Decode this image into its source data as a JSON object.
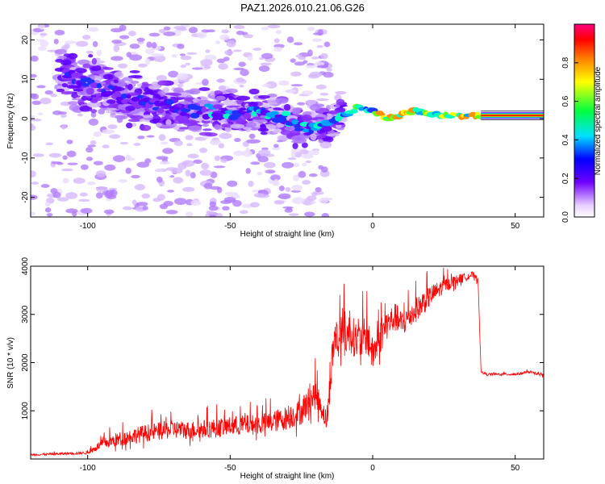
{
  "title": "PAZ1.2026.010.21.06.G26",
  "chart_data": [
    {
      "type": "heatmap",
      "title": "PAZ1.2026.010.21.06.G26",
      "xlabel": "Height of straight line (km)",
      "ylabel": "Frequency (Hz)",
      "xlim": [
        -120,
        60
      ],
      "ylim": [
        -25,
        24
      ],
      "xticks": [
        -100,
        -50,
        0,
        50
      ],
      "yticks": [
        -20,
        -10,
        0,
        10,
        20
      ],
      "colorbar": {
        "label": "Normalized spectral amplitude",
        "range": [
          0.0,
          1.0
        ],
        "ticks": [
          0.0,
          0.2,
          0.4,
          0.6,
          0.8
        ],
        "tick_labels": [
          "0.0",
          "0.2",
          "0.4",
          "0.6",
          "0.8"
        ]
      },
      "ridge_frequency": {
        "x": [
          -120,
          -110,
          -100,
          -90,
          -80,
          -70,
          -60,
          -50,
          -40,
          -30,
          -25,
          -20,
          -15,
          -10,
          -5,
          0,
          5,
          10,
          15,
          20,
          30,
          40,
          50,
          60
        ],
        "y": [
          12,
          11,
          9,
          6,
          4,
          3,
          2,
          1.5,
          1,
          0,
          -2,
          -2,
          -1,
          1,
          3,
          2,
          0,
          1,
          2,
          1,
          0.8,
          0.8,
          0.8,
          0.8
        ]
      }
    },
    {
      "type": "line",
      "xlabel": "Height of straight line (km)",
      "ylabel": "SNR (10 * v/v)",
      "xlim": [
        -120,
        60
      ],
      "ylim": [
        0,
        4000
      ],
      "xticks": [
        -100,
        -50,
        0,
        50
      ],
      "yticks": [
        1000,
        2000,
        3000,
        4000
      ],
      "series": [
        {
          "name": "SNR",
          "color": "#ff0000",
          "x": [
            -120,
            -110,
            -100,
            -95,
            -90,
            -85,
            -80,
            -75,
            -70,
            -65,
            -60,
            -55,
            -50,
            -45,
            -40,
            -35,
            -30,
            -25,
            -22,
            -20,
            -18,
            -16,
            -15,
            -14,
            -13,
            -12,
            -11,
            -10,
            -8,
            -5,
            -2,
            0,
            2,
            5,
            8,
            10,
            15,
            20,
            25,
            30,
            35,
            37,
            38,
            40,
            45,
            50,
            55,
            60
          ],
          "values": [
            80,
            100,
            120,
            280,
            350,
            420,
            480,
            520,
            560,
            540,
            560,
            580,
            620,
            640,
            660,
            700,
            780,
            900,
            1150,
            1250,
            1000,
            700,
            1450,
            2100,
            2500,
            2200,
            2700,
            2400,
            2500,
            2300,
            2450,
            2050,
            2350,
            2700,
            2850,
            2700,
            3000,
            3300,
            3550,
            3700,
            3800,
            3700,
            1800,
            1750,
            1750,
            1750,
            1800,
            1720
          ],
          "noise_amplitude": [
            40,
            50,
            60,
            200,
            300,
            320,
            360,
            380,
            380,
            380,
            380,
            400,
            400,
            420,
            420,
            460,
            500,
            550,
            600,
            600,
            500,
            400,
            700,
            800,
            900,
            900,
            900,
            900,
            800,
            800,
            800,
            700,
            700,
            650,
            600,
            600,
            500,
            450,
            300,
            200,
            150,
            100,
            50,
            50,
            50,
            50,
            50,
            50
          ]
        }
      ]
    }
  ]
}
